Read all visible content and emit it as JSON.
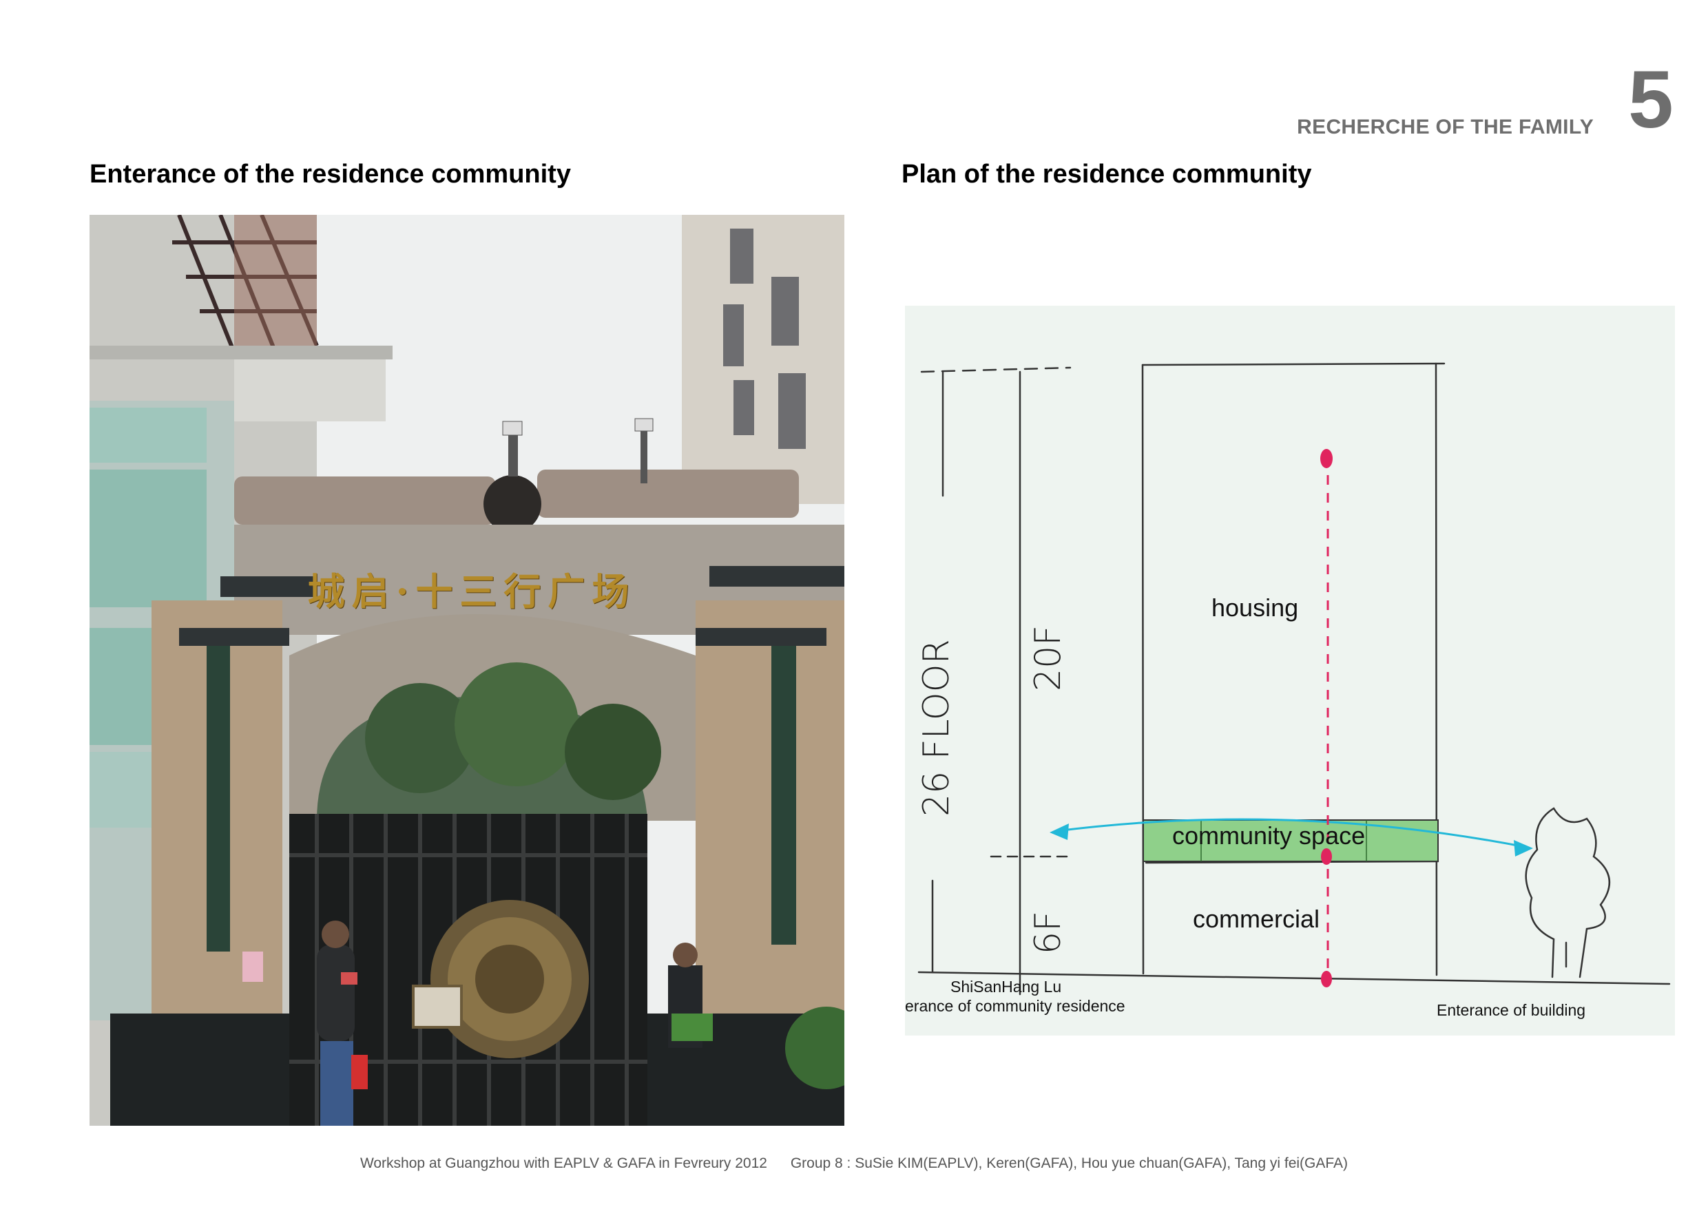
{
  "header": {
    "section_title": "RECHERCHE OF THE FAMILY",
    "page_number": "5"
  },
  "left": {
    "title": "Enterance of the residence community",
    "photo_sign_text": "城启·十三行广场"
  },
  "right": {
    "title": "Plan of the residence community",
    "labels": {
      "housing": "housing",
      "community_space": "community space",
      "commercial": "commercial",
      "street": "ShiSanHang Lu",
      "community_entrance": "erance of community residence",
      "building_entrance": "Enterance of building"
    },
    "handwritten": {
      "floors_total": "26 FLOOR",
      "floors_upper": "20F",
      "floors_lower": "6F"
    },
    "colors": {
      "community_space_fill": "#8fd08a",
      "axis_line": "#e0245e",
      "flow_arrow": "#22b8d8"
    }
  },
  "footer": {
    "workshop": "Workshop at Guangzhou with EAPLV & GAFA in Fevreury 2012",
    "group": "Group 8 : SuSie KIM(EAPLV), Keren(GAFA), Hou yue chuan(GAFA), Tang yi fei(GAFA)"
  }
}
